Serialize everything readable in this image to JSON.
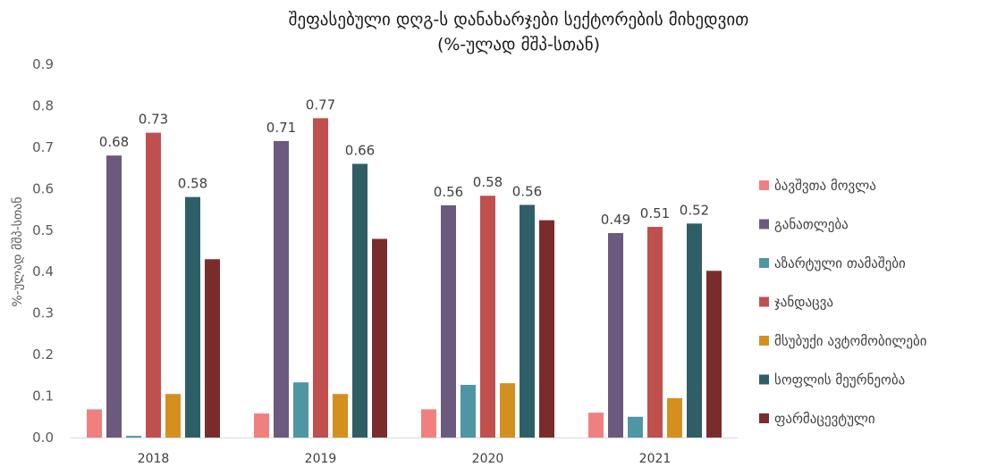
{
  "chart_data": {
    "type": "bar",
    "title": "შეფასებული დღგ-ს დანახარჯები სექტორების მიხედვით",
    "subtitle": "(%-ულად მშპ-სთან)",
    "ylabel": "%-ულად მშპ-სთან",
    "xlabel": "",
    "ylim": [
      0,
      0.9
    ],
    "yticks": [
      "0.0",
      "0.1",
      "0.2",
      "0.3",
      "0.4",
      "0.5",
      "0.6",
      "0.7",
      "0.8",
      "0.9"
    ],
    "categories": [
      "2018",
      "2019",
      "2020",
      "2021"
    ],
    "grid": false,
    "legend_position": "right",
    "series": [
      {
        "name": "ბავშვთა მოვლა",
        "color": "#F08080",
        "values": [
          0.068,
          0.058,
          0.068,
          0.06
        ],
        "labels": [
          "",
          "",
          "",
          ""
        ]
      },
      {
        "name": "განათლება",
        "color": "#6B5A7E",
        "values": [
          0.68,
          0.715,
          0.56,
          0.493
        ],
        "labels": [
          "0.68",
          "0.71",
          "0.56",
          "0.49"
        ]
      },
      {
        "name": "აზარტული თამაშები",
        "color": "#4F96A5",
        "values": [
          0.004,
          0.133,
          0.127,
          0.05
        ],
        "labels": [
          "",
          "",
          "",
          ""
        ]
      },
      {
        "name": "ჯანდაცვა",
        "color": "#C0504D",
        "values": [
          0.735,
          0.77,
          0.583,
          0.508
        ],
        "labels": [
          "0.73",
          "0.77",
          "0.58",
          "0.51"
        ]
      },
      {
        "name": "მსუბუქი ავტომობილები",
        "color": "#D4901E",
        "values": [
          0.105,
          0.105,
          0.131,
          0.095
        ],
        "labels": [
          "",
          "",
          "",
          ""
        ]
      },
      {
        "name": "სოფლის მეურნეობა",
        "color": "#2F5F66",
        "values": [
          0.58,
          0.66,
          0.561,
          0.516
        ],
        "labels": [
          "0.58",
          "0.66",
          "0.56",
          "0.52"
        ]
      },
      {
        "name": "ფარმაცევტული",
        "color": "#7A2C2C",
        "values": [
          0.43,
          0.479,
          0.524,
          0.402
        ],
        "labels": [
          "",
          "",
          "",
          ""
        ]
      }
    ]
  }
}
